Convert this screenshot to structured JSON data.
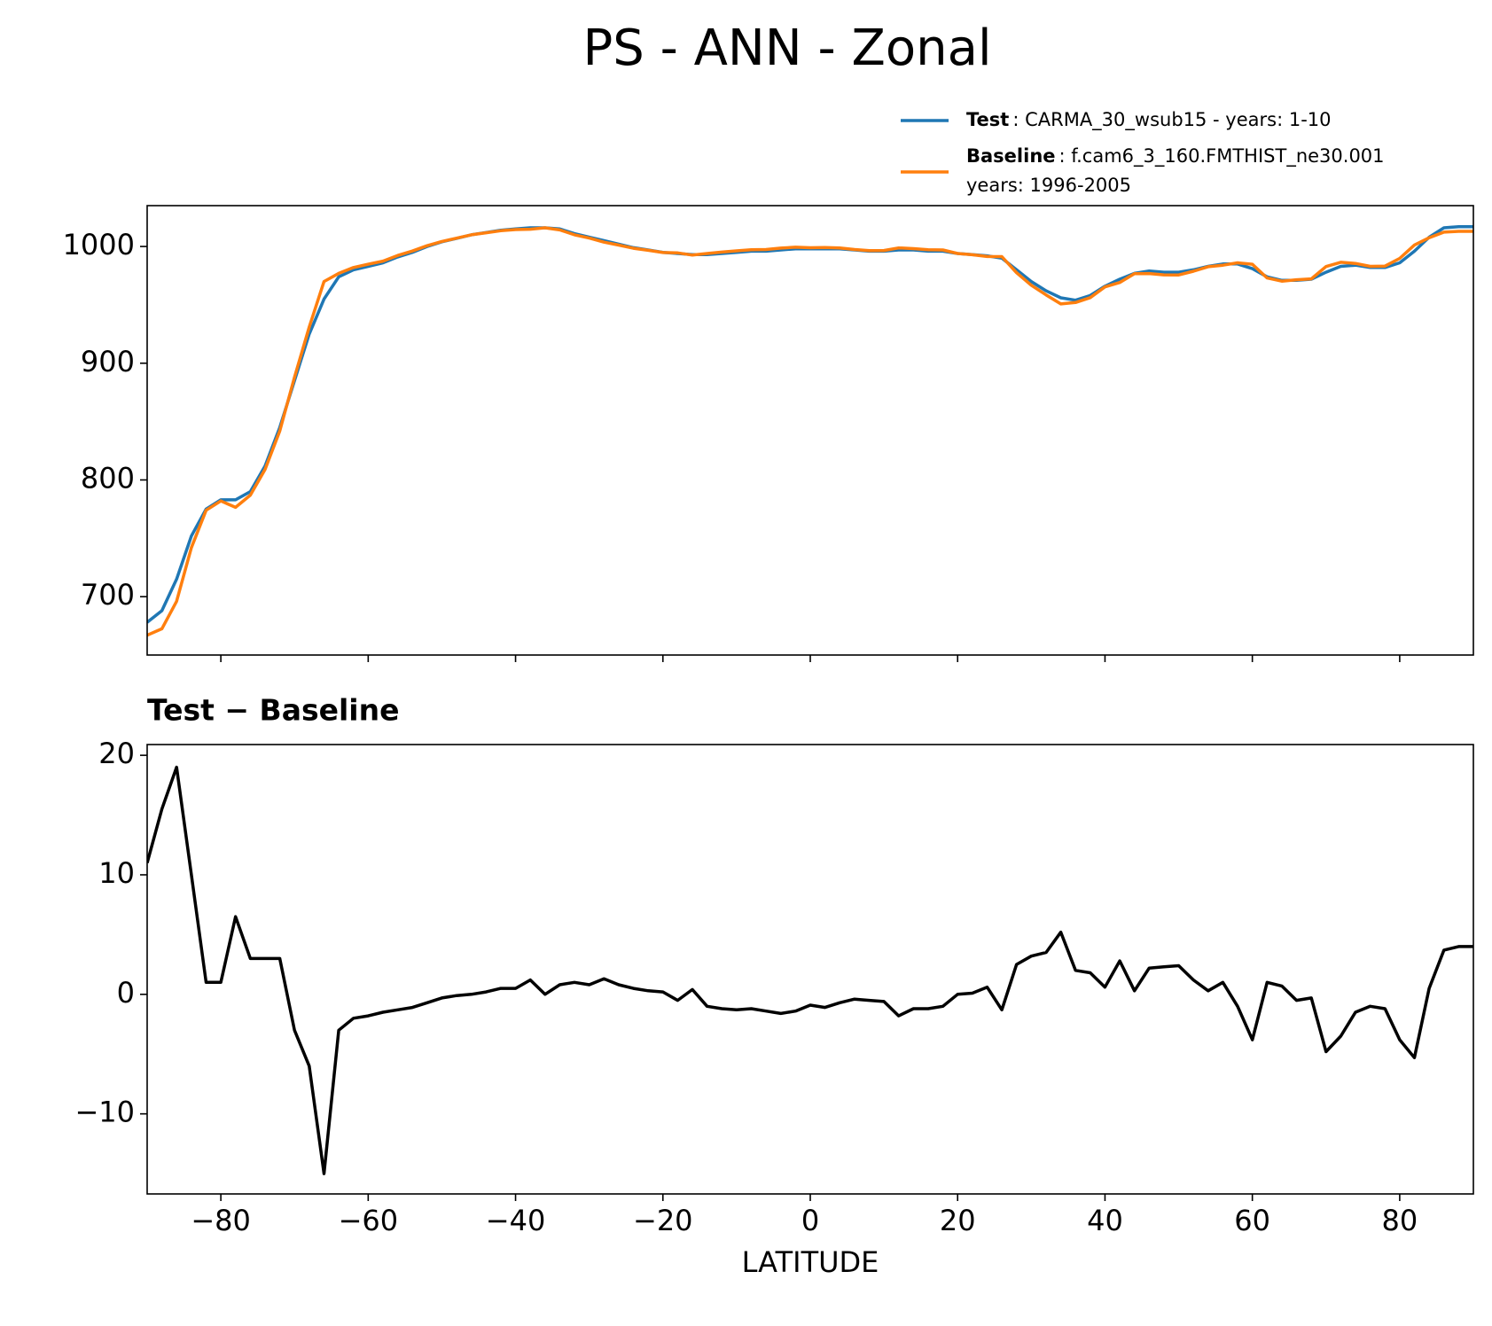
{
  "title": "PS - ANN - Zonal",
  "chart_data": [
    {
      "type": "line",
      "x": [
        -90,
        -88,
        -86,
        -84,
        -82,
        -80,
        -78,
        -76,
        -74,
        -72,
        -70,
        -68,
        -66,
        -64,
        -62,
        -60,
        -58,
        -56,
        -54,
        -52,
        -50,
        -48,
        -46,
        -44,
        -42,
        -40,
        -38,
        -36,
        -34,
        -32,
        -30,
        -28,
        -26,
        -24,
        -22,
        -20,
        -18,
        -16,
        -14,
        -12,
        -10,
        -8,
        -6,
        -4,
        -2,
        0,
        2,
        4,
        6,
        8,
        10,
        12,
        14,
        16,
        18,
        20,
        22,
        24,
        26,
        28,
        30,
        32,
        34,
        36,
        38,
        40,
        42,
        44,
        46,
        48,
        50,
        52,
        54,
        56,
        58,
        60,
        62,
        64,
        66,
        68,
        70,
        72,
        74,
        76,
        78,
        80,
        82,
        84,
        86,
        88,
        90
      ],
      "series": [
        {
          "name": "Test",
          "legend_text": [
            ": CARMA_30_wsub15 - years: 1-10"
          ],
          "color": "#1f77b4",
          "values": [
            678,
            688,
            715,
            752,
            775,
            783,
            783,
            790,
            812,
            845,
            885,
            925,
            955,
            974,
            980,
            983,
            986,
            991,
            995,
            1000,
            1004,
            1007,
            1010,
            1012,
            1014,
            1015,
            1016,
            1016,
            1015,
            1011,
            1008,
            1005,
            1002,
            999,
            997,
            995,
            994,
            993,
            993,
            994,
            995,
            996,
            996,
            997,
            998,
            998,
            998,
            998,
            997,
            996,
            996,
            997,
            997,
            996,
            996,
            994,
            993,
            992,
            990,
            980,
            970,
            962,
            956,
            954,
            958,
            966,
            972,
            977,
            979,
            978,
            978,
            980,
            983,
            985,
            985,
            981,
            974,
            971,
            971,
            972,
            978,
            983,
            984,
            982,
            982,
            986,
            996,
            1008,
            1016,
            1017,
            1017
          ]
        },
        {
          "name": "Baseline",
          "legend_text": [
            ": f.cam6_3_160.FMTHIST_ne30.001",
            "years: 1996-2005"
          ],
          "color": "#ff7f0e",
          "values": [
            667,
            672.5,
            696,
            742,
            774,
            782,
            776.5,
            787,
            809,
            842,
            888,
            931,
            970,
            977,
            982,
            984.8,
            987.5,
            992.3,
            996.1,
            1000.7,
            1004.3,
            1007.1,
            1010,
            1011.8,
            1013.5,
            1014.5,
            1014.8,
            1016,
            1014.2,
            1010,
            1007.2,
            1003.7,
            1001.2,
            998.5,
            996.7,
            994.8,
            994.5,
            992.6,
            994,
            995.2,
            996.3,
            997.2,
            997.4,
            998.6,
            999.4,
            998.9,
            999.1,
            998.7,
            997.4,
            996.5,
            996.6,
            998.8,
            998.2,
            997.2,
            997,
            994,
            992.9,
            991.4,
            991.3,
            977.5,
            966.8,
            958.5,
            950.8,
            952,
            956.2,
            965.4,
            969.2,
            976.7,
            976.8,
            975.7,
            975.6,
            978.8,
            982.7,
            984,
            986,
            984.8,
            973,
            970.3,
            971.5,
            972.3,
            982.8,
            986.5,
            985.5,
            983,
            983.2,
            989.8,
            1001.3,
            1007.5,
            1012.3,
            1013,
            1013
          ]
        }
      ],
      "xlim": [
        -90,
        90
      ],
      "xticks": [
        -80,
        -60,
        -40,
        -20,
        0,
        20,
        40,
        60,
        80
      ],
      "ylim": [
        650,
        1035
      ],
      "yticks": [
        700,
        800,
        900,
        1000
      ]
    },
    {
      "type": "line",
      "title": "Test − Baseline",
      "xlabel": "LATITUDE",
      "x": [
        -90,
        -88,
        -86,
        -84,
        -82,
        -80,
        -78,
        -76,
        -74,
        -72,
        -70,
        -68,
        -66,
        -64,
        -62,
        -60,
        -58,
        -56,
        -54,
        -52,
        -50,
        -48,
        -46,
        -44,
        -42,
        -40,
        -38,
        -36,
        -34,
        -32,
        -30,
        -28,
        -26,
        -24,
        -22,
        -20,
        -18,
        -16,
        -14,
        -12,
        -10,
        -8,
        -6,
        -4,
        -2,
        0,
        2,
        4,
        6,
        8,
        10,
        12,
        14,
        16,
        18,
        20,
        22,
        24,
        26,
        28,
        30,
        32,
        34,
        36,
        38,
        40,
        42,
        44,
        46,
        48,
        50,
        52,
        54,
        56,
        58,
        60,
        62,
        64,
        66,
        68,
        70,
        72,
        74,
        76,
        78,
        80,
        82,
        84,
        86,
        88,
        90
      ],
      "series": [
        {
          "name": "Test − Baseline",
          "color": "#000000",
          "values": [
            11,
            15.5,
            19,
            10,
            1,
            1,
            6.5,
            3,
            3,
            3,
            -3,
            -6,
            -15,
            -3,
            -2,
            -1.8,
            -1.5,
            -1.3,
            -1.1,
            -0.7,
            -0.3,
            -0.1,
            0,
            0.2,
            0.5,
            0.5,
            1.2,
            0,
            0.8,
            1,
            0.8,
            1.3,
            0.8,
            0.5,
            0.3,
            0.2,
            -0.5,
            0.4,
            -1,
            -1.2,
            -1.3,
            -1.2,
            -1.4,
            -1.6,
            -1.4,
            -0.9,
            -1.1,
            -0.7,
            -0.4,
            -0.5,
            -0.6,
            -1.8,
            -1.2,
            -1.2,
            -1,
            0,
            0.1,
            0.6,
            -1.3,
            2.5,
            3.2,
            3.5,
            5.2,
            2,
            1.8,
            0.6,
            2.8,
            0.3,
            2.2,
            2.3,
            2.4,
            1.2,
            0.3,
            1,
            -1,
            -3.8,
            1,
            0.7,
            -0.5,
            -0.3,
            -4.8,
            -3.5,
            -1.5,
            -1,
            -1.2,
            -3.8,
            -5.3,
            0.5,
            3.7,
            4,
            4
          ]
        }
      ],
      "xlim": [
        -90,
        90
      ],
      "xticks": [
        {
          "value": -80,
          "label": "−80"
        },
        {
          "value": -60,
          "label": "−60"
        },
        {
          "value": -40,
          "label": "−40"
        },
        {
          "value": -20,
          "label": "−20"
        },
        0,
        20,
        40,
        60,
        80
      ],
      "ylim": [
        -16.7,
        20.9
      ],
      "yticks": [
        {
          "value": -10,
          "label": "−10"
        },
        0,
        10,
        20
      ]
    }
  ]
}
